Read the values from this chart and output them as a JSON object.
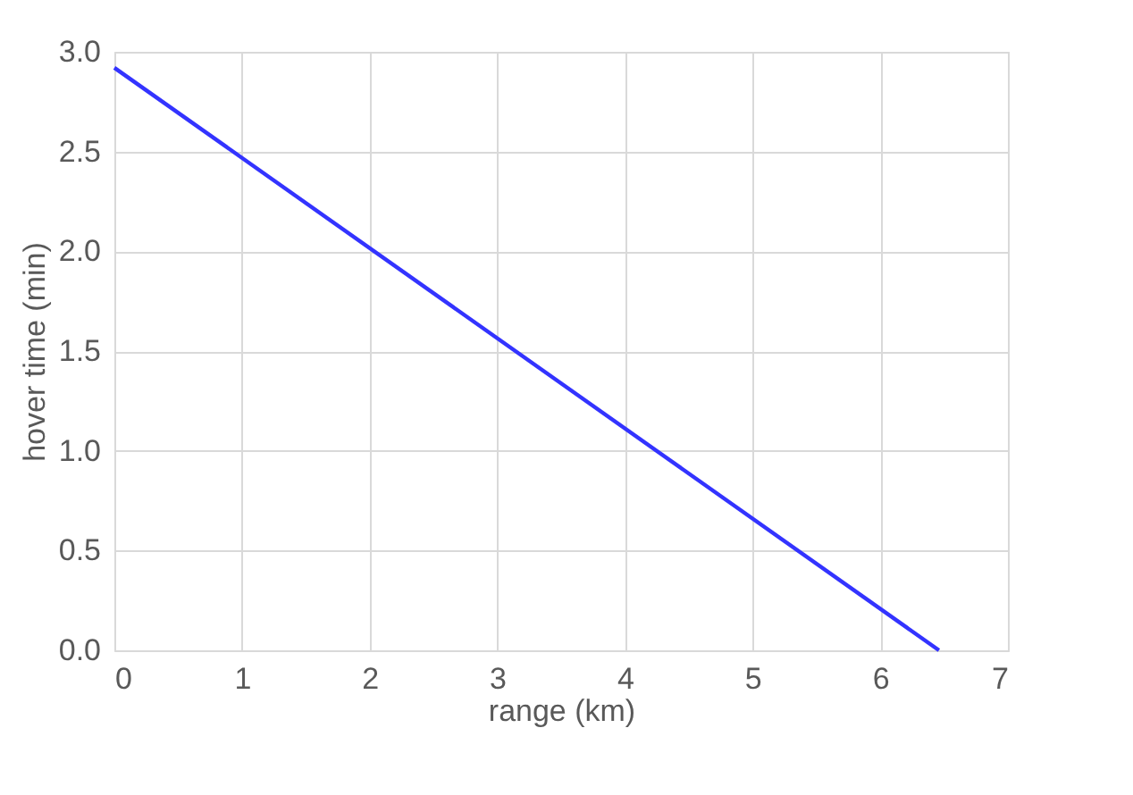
{
  "chart_data": {
    "type": "line",
    "xlabel": "range (km)",
    "ylabel": "hover time (min)",
    "x": [
      0,
      6.46
    ],
    "series": [
      {
        "color": "#3333ff",
        "values": [
          2.92,
          0
        ]
      }
    ],
    "xlim": [
      0,
      7
    ],
    "xticks": [
      0,
      1,
      2,
      3,
      4,
      5,
      6,
      7
    ],
    "ylim": [
      0,
      3
    ],
    "yticks": [
      {
        "value": 0,
        "label": "0.0"
      },
      {
        "value": 0.5,
        "label": "0.5"
      },
      {
        "value": 1,
        "label": "1.0"
      },
      {
        "value": 1.5,
        "label": "1.5"
      },
      {
        "value": 2,
        "label": "2.0"
      },
      {
        "value": 2.5,
        "label": "2.5"
      },
      {
        "value": 3,
        "label": "3.0"
      }
    ],
    "grid": true,
    "marker": "none",
    "line_style": "solid"
  }
}
